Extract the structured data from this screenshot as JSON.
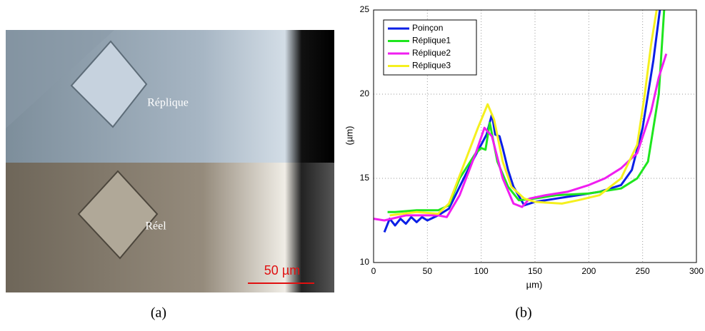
{
  "photo": {
    "label_top": "Réplique",
    "label_bottom": "Réel",
    "scale": "50 µm"
  },
  "captions": [
    "(a)",
    "(b)"
  ],
  "chart_data": {
    "type": "line",
    "x_label": "µm)",
    "y_label": "(µm)",
    "xlim": [
      0,
      300
    ],
    "ylim": [
      10,
      25
    ],
    "xticks": [
      0,
      50,
      100,
      150,
      200,
      250,
      300
    ],
    "yticks": [
      10,
      15,
      20,
      25
    ],
    "grid": true,
    "legend": "upper left",
    "series": [
      {
        "name": "Poinçon",
        "color": "#0a1fe6",
        "x": [
          10,
          15,
          20,
          25,
          30,
          35,
          40,
          45,
          50,
          60,
          70,
          80,
          90,
          100,
          105,
          110,
          113,
          117,
          120,
          125,
          130,
          140,
          150,
          170,
          190,
          210,
          230,
          240,
          250,
          260,
          266
        ],
        "values": [
          11.8,
          12.6,
          12.2,
          12.6,
          12.3,
          12.7,
          12.4,
          12.7,
          12.5,
          12.8,
          13.2,
          14.5,
          15.8,
          17.0,
          17.6,
          18.8,
          17.6,
          17.5,
          16.8,
          15.5,
          14.5,
          13.4,
          13.6,
          13.8,
          14.0,
          14.2,
          14.6,
          15.5,
          18.0,
          22.0,
          25.0
        ]
      },
      {
        "name": "Réplique1",
        "color": "#1ee61e",
        "x": [
          13,
          20,
          40,
          60,
          70,
          80,
          95,
          100,
          104,
          108,
          115,
          125,
          135,
          150,
          170,
          200,
          230,
          245,
          255,
          265,
          270
        ],
        "values": [
          13.0,
          13.0,
          13.1,
          13.1,
          13.4,
          15.0,
          16.5,
          16.8,
          16.7,
          18.3,
          16.0,
          14.5,
          13.7,
          13.8,
          14.0,
          14.1,
          14.4,
          15.0,
          16.0,
          20.0,
          25.0
        ]
      },
      {
        "name": "Réplique2",
        "color": "#f01ef0",
        "x": [
          0,
          10,
          30,
          60,
          68,
          80,
          95,
          103,
          110,
          120,
          130,
          138,
          145,
          160,
          180,
          200,
          215,
          230,
          245,
          258,
          265,
          272
        ],
        "values": [
          12.6,
          12.5,
          12.8,
          12.8,
          12.7,
          14.0,
          16.5,
          18.0,
          17.5,
          15.0,
          13.5,
          13.3,
          13.8,
          14.0,
          14.2,
          14.6,
          15.0,
          15.6,
          16.5,
          19.0,
          21.0,
          22.4
        ]
      },
      {
        "name": "Réplique3",
        "color": "#f5f01e",
        "x": [
          15,
          40,
          60,
          70,
          85,
          97,
          106,
          112,
          120,
          128,
          140,
          150,
          175,
          190,
          210,
          230,
          245,
          252,
          258,
          263
        ],
        "values": [
          12.8,
          13.0,
          12.9,
          13.5,
          16.0,
          18.0,
          19.4,
          18.5,
          16.0,
          14.5,
          13.8,
          13.6,
          13.5,
          13.7,
          14.0,
          15.0,
          17.0,
          20.0,
          23.0,
          25.0
        ]
      }
    ]
  }
}
